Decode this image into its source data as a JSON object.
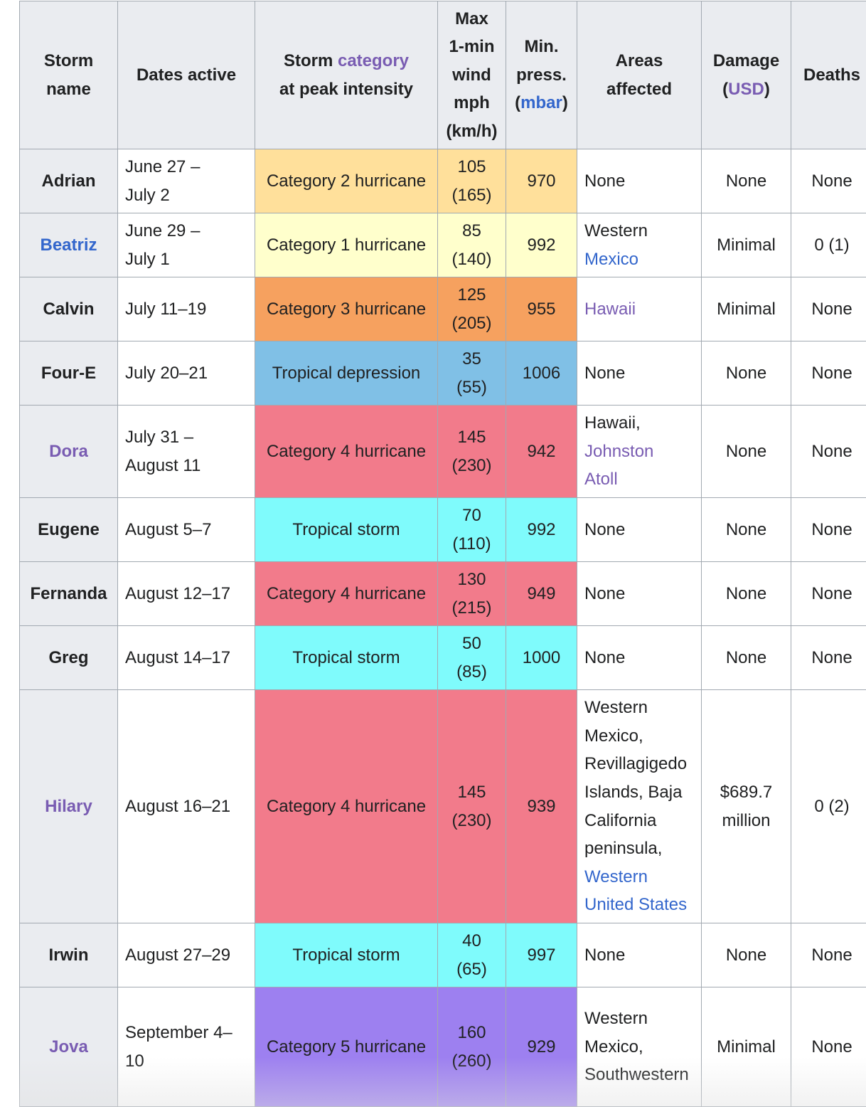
{
  "headers": {
    "name_line1": "Storm",
    "name_line2": "name",
    "dates": "Dates active",
    "category_prefix": "Storm ",
    "category_link": "category",
    "category_suffix": "at peak intensity",
    "wind_line1": "Max",
    "wind_line2": "1-min",
    "wind_line3": "wind",
    "wind_line4": "mph",
    "wind_line5": "(km/h)",
    "press_line1": "Min.",
    "press_line2": "press.",
    "press_open": "(",
    "press_link": "mbar",
    "press_close": ")",
    "areas_line1": "Areas",
    "areas_line2": "affected",
    "damage_line1": "Damage",
    "damage_open": "(",
    "damage_link": "USD",
    "damage_close": ")",
    "deaths": "Deaths"
  },
  "category_colors": {
    "cat1": "#ffffcc",
    "cat2": "#ffe09b",
    "cat3": "#f6a15f",
    "cat4": "#f27b8b",
    "cat5": "#9d80f0",
    "td": "#80c0e6",
    "ts": "#7ffbfc"
  },
  "rows": [
    {
      "name": "Adrian",
      "name_style": "plain",
      "dates": [
        "June 27 –",
        "July 2"
      ],
      "category": "Category 2 hurricane",
      "cat_key": "cat2",
      "wind": [
        "105",
        "(165)"
      ],
      "pressure": "970",
      "areas": [
        {
          "text": "None",
          "style": "plain"
        }
      ],
      "damage": [
        "None"
      ],
      "deaths": "None",
      "height": 90
    },
    {
      "name": "Beatriz",
      "name_style": "blue",
      "dates": [
        "June 29 –",
        "July 1"
      ],
      "category": "Category 1 hurricane",
      "cat_key": "cat1",
      "wind": [
        "85",
        "(140)"
      ],
      "pressure": "992",
      "areas": [
        {
          "text": "Western",
          "style": "plain"
        },
        {
          "text": "Mexico",
          "style": "blue"
        }
      ],
      "damage": [
        "Minimal"
      ],
      "deaths": "0 (1)",
      "height": 90
    },
    {
      "name": "Calvin",
      "name_style": "plain",
      "dates": [
        "July 11–19"
      ],
      "category": "Category 3 hurricane",
      "cat_key": "cat3",
      "wind": [
        "125",
        "(205)"
      ],
      "pressure": "955",
      "areas": [
        {
          "text": "Hawaii",
          "style": "visited"
        }
      ],
      "damage": [
        "Minimal"
      ],
      "deaths": "None",
      "height": 90
    },
    {
      "name": "Four-E",
      "name_style": "plain",
      "dates": [
        "July 20–21"
      ],
      "category": "Tropical depression",
      "cat_key": "td",
      "wind": [
        "35",
        "(55)"
      ],
      "pressure": "1006",
      "areas": [
        {
          "text": "None",
          "style": "plain"
        }
      ],
      "damage": [
        "None"
      ],
      "deaths": "None",
      "height": 90
    },
    {
      "name": "Dora",
      "name_style": "visited",
      "dates": [
        "July 31 –",
        "August 11"
      ],
      "category": "Category 4 hurricane",
      "cat_key": "cat4",
      "wind": [
        "145",
        "(230)"
      ],
      "pressure": "942",
      "areas": [
        {
          "text": "Hawaii,",
          "style": "plain"
        },
        {
          "text": "Johnston",
          "style": "visited"
        },
        {
          "text": "Atoll",
          "style": "visited"
        }
      ],
      "damage": [
        "None"
      ],
      "deaths": "None",
      "height": 130
    },
    {
      "name": "Eugene",
      "name_style": "plain",
      "dates": [
        "August 5–7"
      ],
      "category": "Tropical storm",
      "cat_key": "ts",
      "wind": [
        "70",
        "(110)"
      ],
      "pressure": "992",
      "areas": [
        {
          "text": "None",
          "style": "plain"
        }
      ],
      "damage": [
        "None"
      ],
      "deaths": "None",
      "height": 90
    },
    {
      "name": "Fernanda",
      "name_style": "plain",
      "dates": [
        "August 12–17"
      ],
      "category": "Category 4 hurricane",
      "cat_key": "cat4",
      "wind": [
        "130",
        "(215)"
      ],
      "pressure": "949",
      "areas": [
        {
          "text": "None",
          "style": "plain"
        }
      ],
      "damage": [
        "None"
      ],
      "deaths": "None",
      "height": 90
    },
    {
      "name": "Greg",
      "name_style": "plain",
      "dates": [
        "August 14–17"
      ],
      "category": "Tropical storm",
      "cat_key": "ts",
      "wind": [
        "50",
        "(85)"
      ],
      "pressure": "1000",
      "areas": [
        {
          "text": "None",
          "style": "plain"
        }
      ],
      "damage": [
        "None"
      ],
      "deaths": "None",
      "height": 90
    },
    {
      "name": "Hilary",
      "name_style": "visited",
      "dates": [
        "August 16–21"
      ],
      "category": "Category 4 hurricane",
      "cat_key": "cat4",
      "wind": [
        "145",
        "(230)"
      ],
      "pressure": "939",
      "areas": [
        {
          "text": "Western",
          "style": "plain"
        },
        {
          "text": "Mexico,",
          "style": "plain"
        },
        {
          "text": "Revillagigedo",
          "style": "plain"
        },
        {
          "text": "Islands, Baja",
          "style": "plain"
        },
        {
          "text": "California",
          "style": "plain"
        },
        {
          "text": "peninsula,",
          "style": "plain"
        },
        {
          "text": "Western",
          "style": "blue"
        },
        {
          "text": "United States",
          "style": "blue"
        }
      ],
      "damage": [
        "$689.7",
        "million"
      ],
      "deaths": "0 (2)",
      "height": 328
    },
    {
      "name": "Irwin",
      "name_style": "plain",
      "dates": [
        "August 27–29"
      ],
      "category": "Tropical storm",
      "cat_key": "ts",
      "wind": [
        "40",
        "(65)"
      ],
      "pressure": "997",
      "areas": [
        {
          "text": "None",
          "style": "plain"
        }
      ],
      "damage": [
        "None"
      ],
      "deaths": "None",
      "height": 90
    },
    {
      "name": "Jova",
      "name_style": "visited",
      "dates": [
        "September 4–",
        "10"
      ],
      "category": "Category 5 hurricane",
      "cat_key": "cat5",
      "wind": [
        "160",
        "(260)"
      ],
      "pressure": "929",
      "areas": [
        {
          "text": "Western",
          "style": "plain"
        },
        {
          "text": "Mexico,",
          "style": "plain"
        },
        {
          "text": "Southwestern",
          "style": "plain"
        }
      ],
      "damage": [
        "Minimal"
      ],
      "deaths": "None",
      "height": 168
    }
  ]
}
